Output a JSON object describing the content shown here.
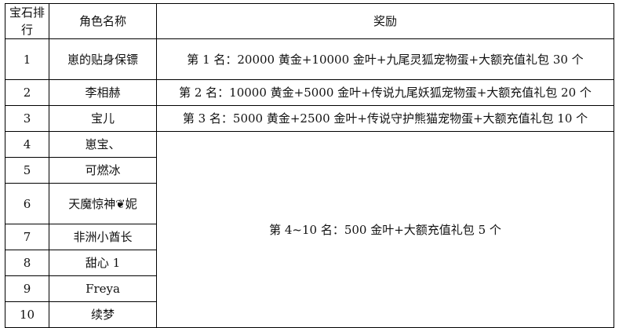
{
  "headers": [
    "宝石排行",
    "角色名称",
    "奖励"
  ],
  "rows": [
    {
      "rank": "1",
      "name": "崽的贴身保镖",
      "reward": "第 1 名：20000 黄金+10000 金叶+九尾灵狐宠物蛋+大额充值礼包 30 个"
    },
    {
      "rank": "2",
      "name": "李相赫",
      "reward": "第 2 名：10000 黄金+5000 金叶+传说九尾妖狐宠物蛋+大额充值礼包 20 个"
    },
    {
      "rank": "3",
      "name": "宝儿",
      "reward": "第 3 名：5000 黄金+2500 金叶+传说守护熊猫宠物蛋+大额充值礼包 10 个"
    },
    {
      "rank": "4",
      "name": "崽宝、"
    },
    {
      "rank": "5",
      "name": "可燃冰"
    },
    {
      "rank": "6",
      "name": "天魔惊神❦妮"
    },
    {
      "rank": "7",
      "name": "非洲小酋长"
    },
    {
      "rank": "8",
      "name": "甜心 1"
    },
    {
      "rank": "9",
      "name": "Freya"
    },
    {
      "rank": "10",
      "name": "续梦"
    }
  ],
  "shared_reward": "第 4~10 名：500 金叶+大额充值礼包 5 个"
}
